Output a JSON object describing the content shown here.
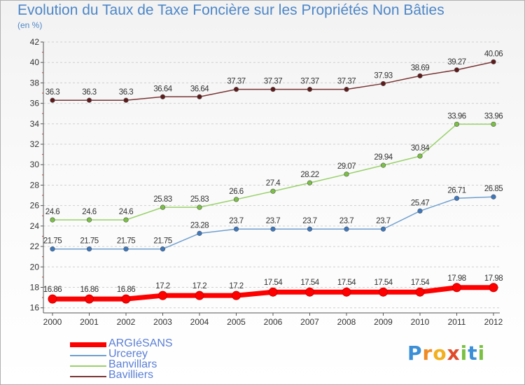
{
  "chart_data": {
    "type": "line",
    "title": "Evolution du Taux de Taxe Foncière sur les Propriétés Non Bâties",
    "subtitle": "(en %)",
    "x": [
      "2000",
      "2001",
      "2002",
      "2003",
      "2004",
      "2005",
      "2006",
      "2007",
      "2008",
      "2009",
      "2010",
      "2011",
      "2012"
    ],
    "ylim": [
      15.5,
      42
    ],
    "yticks": [
      16,
      18,
      20,
      22,
      24,
      26,
      28,
      30,
      32,
      34,
      36,
      38,
      40,
      42
    ],
    "grid": "horizontal dashed",
    "legend_position": "bottom-left",
    "series": [
      {
        "name": "ARGIéSANS",
        "color": "#ff0000",
        "marker_color": "#ff0000",
        "width": 7,
        "values": [
          16.86,
          16.86,
          16.86,
          17.2,
          17.2,
          17.2,
          17.54,
          17.54,
          17.54,
          17.54,
          17.54,
          17.98,
          17.98
        ],
        "labels": [
          "16.86",
          "16.86",
          "16.86",
          "17.2",
          "17.2",
          "17.2",
          "17.54",
          "17.54",
          "17.54",
          "17.54",
          "17.54",
          "17.98",
          "17.98"
        ]
      },
      {
        "name": "Urcerey",
        "color": "#6f9fcf",
        "marker_color": "#3b78c0",
        "width": 1.5,
        "values": [
          21.75,
          21.75,
          21.75,
          21.75,
          23.28,
          23.7,
          23.7,
          23.7,
          23.7,
          23.7,
          25.47,
          26.71,
          26.85
        ],
        "labels": [
          "21.75",
          "21.75",
          "21.75",
          "21.75",
          "23.28",
          "23.7",
          "23.7",
          "23.7",
          "23.7",
          "23.7",
          "25.47",
          "26.71",
          "26.85"
        ]
      },
      {
        "name": "Banvillars",
        "color": "#99d16a",
        "marker_color": "#7ac143",
        "width": 1.5,
        "values": [
          24.6,
          24.6,
          24.6,
          25.83,
          25.83,
          26.6,
          27.4,
          28.22,
          29.07,
          29.94,
          30.84,
          33.96,
          33.96
        ],
        "labels": [
          "24.6",
          "24.6",
          "24.6",
          "25.83",
          "25.83",
          "26.6",
          "27.4",
          "28.22",
          "29.07",
          "29.94",
          "30.84",
          "33.96",
          "33.96"
        ]
      },
      {
        "name": "Bavilliers",
        "color": "#7a3535",
        "marker_color": "#5e1a1a",
        "width": 1.5,
        "values": [
          36.3,
          36.3,
          36.3,
          36.64,
          36.64,
          37.37,
          37.37,
          37.37,
          37.37,
          37.93,
          38.69,
          39.27,
          40.06
        ],
        "labels": [
          "36.3",
          "36.3",
          "36.3",
          "36.64",
          "36.64",
          "37.37",
          "37.37",
          "37.37",
          "37.37",
          "37.93",
          "38.69",
          "39.27",
          "40.06"
        ]
      }
    ]
  },
  "logo": {
    "letters": [
      "P",
      "r",
      "o",
      "x",
      "i",
      "t",
      "i"
    ],
    "colors": [
      "#3a8fd6",
      "#f08a24",
      "#f2b01e",
      "#e04a2a",
      "#7ac143",
      "#3a8fd6",
      "#7ac143"
    ]
  }
}
